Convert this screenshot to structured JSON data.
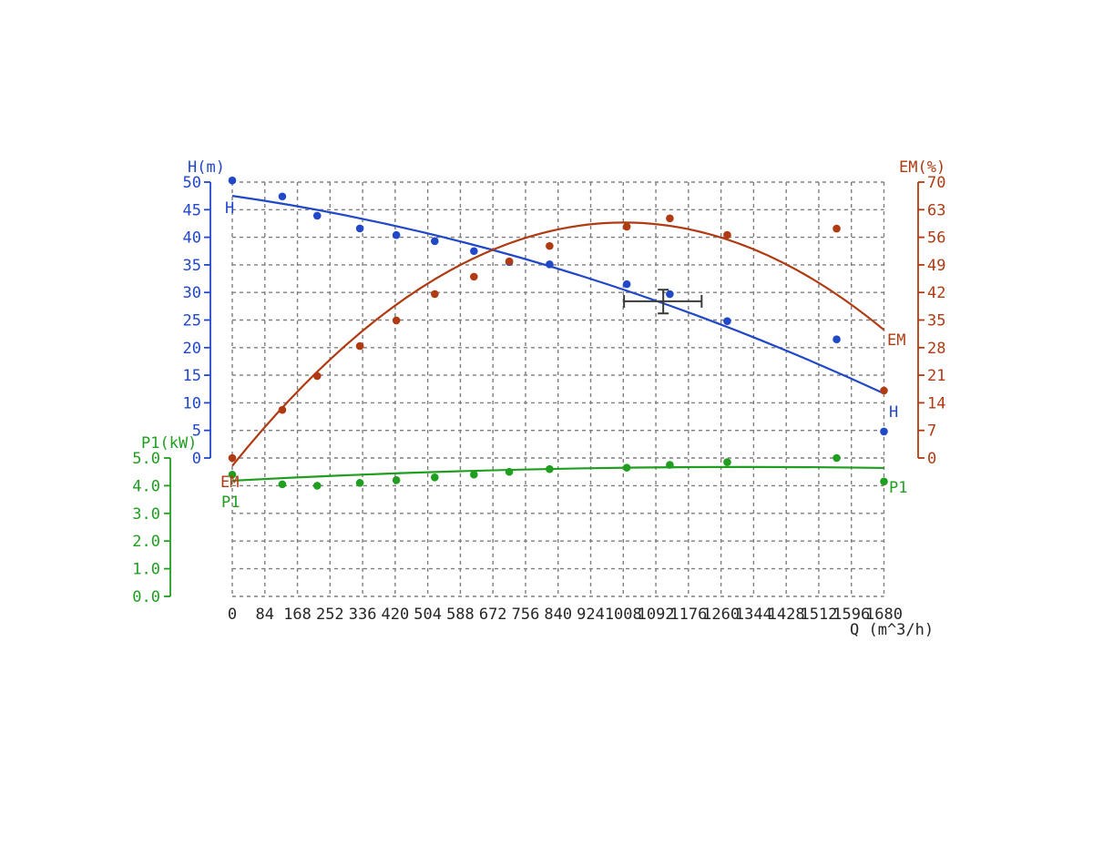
{
  "labels": {
    "axis_titles": {
      "h": "H(m)",
      "em": "EM(%)",
      "p1": "P1(kW)",
      "q": "Q (m^3/h)"
    },
    "series": {
      "h": "H",
      "em": "EM",
      "p1": "P1"
    }
  },
  "colors": {
    "h": "#2148c8",
    "em": "#b03a12",
    "p1": "#1f9e1f",
    "grid": "#7e7e7e",
    "axis_text": "#262626",
    "marker": "#3a3a3a"
  },
  "chart_data": {
    "type": "scatter",
    "x_axis": {
      "label": "Q (m^3/h)",
      "min": 0,
      "max": 1680,
      "tick_step": 84,
      "ticks": [
        0,
        84,
        168,
        252,
        336,
        420,
        504,
        588,
        672,
        756,
        840,
        924,
        1008,
        1092,
        1176,
        1260,
        1344,
        1428,
        1512,
        1596,
        1680
      ]
    },
    "y_axes": [
      {
        "id": "h",
        "label": "H(m)",
        "side": "left",
        "min": 0,
        "max": 50,
        "ticks": [
          50,
          45,
          40,
          35,
          30,
          25,
          20,
          15,
          10,
          5,
          0
        ]
      },
      {
        "id": "em",
        "label": "EM(%)",
        "side": "right",
        "min": 0,
        "max": 70,
        "ticks": [
          70,
          63,
          56,
          49,
          42,
          35,
          28,
          21,
          14,
          7,
          0
        ]
      },
      {
        "id": "p1",
        "label": "P1(kW)",
        "side": "left-lower",
        "min": 0,
        "max": 5,
        "ticks": [
          "5.0",
          "4.0",
          "3.0",
          "2.0",
          "1.0",
          "0.0"
        ]
      }
    ],
    "q_values": [
      0,
      129,
      219,
      329,
      423,
      522,
      623,
      714,
      818,
      1017,
      1128,
      1276,
      1558,
      1680
    ],
    "series": [
      {
        "name": "H",
        "axis": "h",
        "points": [
          50.3,
          47.4,
          43.9,
          41.6,
          40.4,
          39.3,
          37.5,
          35.5,
          35.1,
          31.5,
          29.7,
          24.8,
          21.5,
          4.8
        ],
        "trend": [
          [
            0,
            47.5
          ],
          [
            840,
            34.3
          ],
          [
            1680,
            11.7
          ]
        ]
      },
      {
        "name": "EM",
        "axis": "em",
        "points": [
          0,
          12.2,
          20.8,
          28.4,
          34.9,
          41.6,
          46.0,
          49.9,
          53.8,
          58.7,
          60.8,
          56.6,
          58.2,
          17.1
        ],
        "trend": [
          [
            0,
            -2.0
          ],
          [
            840,
            58.0
          ],
          [
            1680,
            32.5
          ]
        ]
      },
      {
        "name": "P1",
        "axis": "p1",
        "points": [
          4.4,
          4.05,
          4.0,
          4.1,
          4.2,
          4.3,
          4.4,
          4.5,
          4.6,
          4.65,
          4.75,
          4.85,
          5.0,
          4.15
        ],
        "trend": [
          [
            0,
            4.18
          ],
          [
            840,
            4.61
          ],
          [
            1680,
            4.64
          ]
        ]
      }
    ],
    "marker": {
      "q": 1111,
      "h": 28.4,
      "q_min": 1010,
      "q_max": 1210,
      "h_min": 26.2,
      "h_max": 30.5
    },
    "grid": true,
    "legend": false
  }
}
